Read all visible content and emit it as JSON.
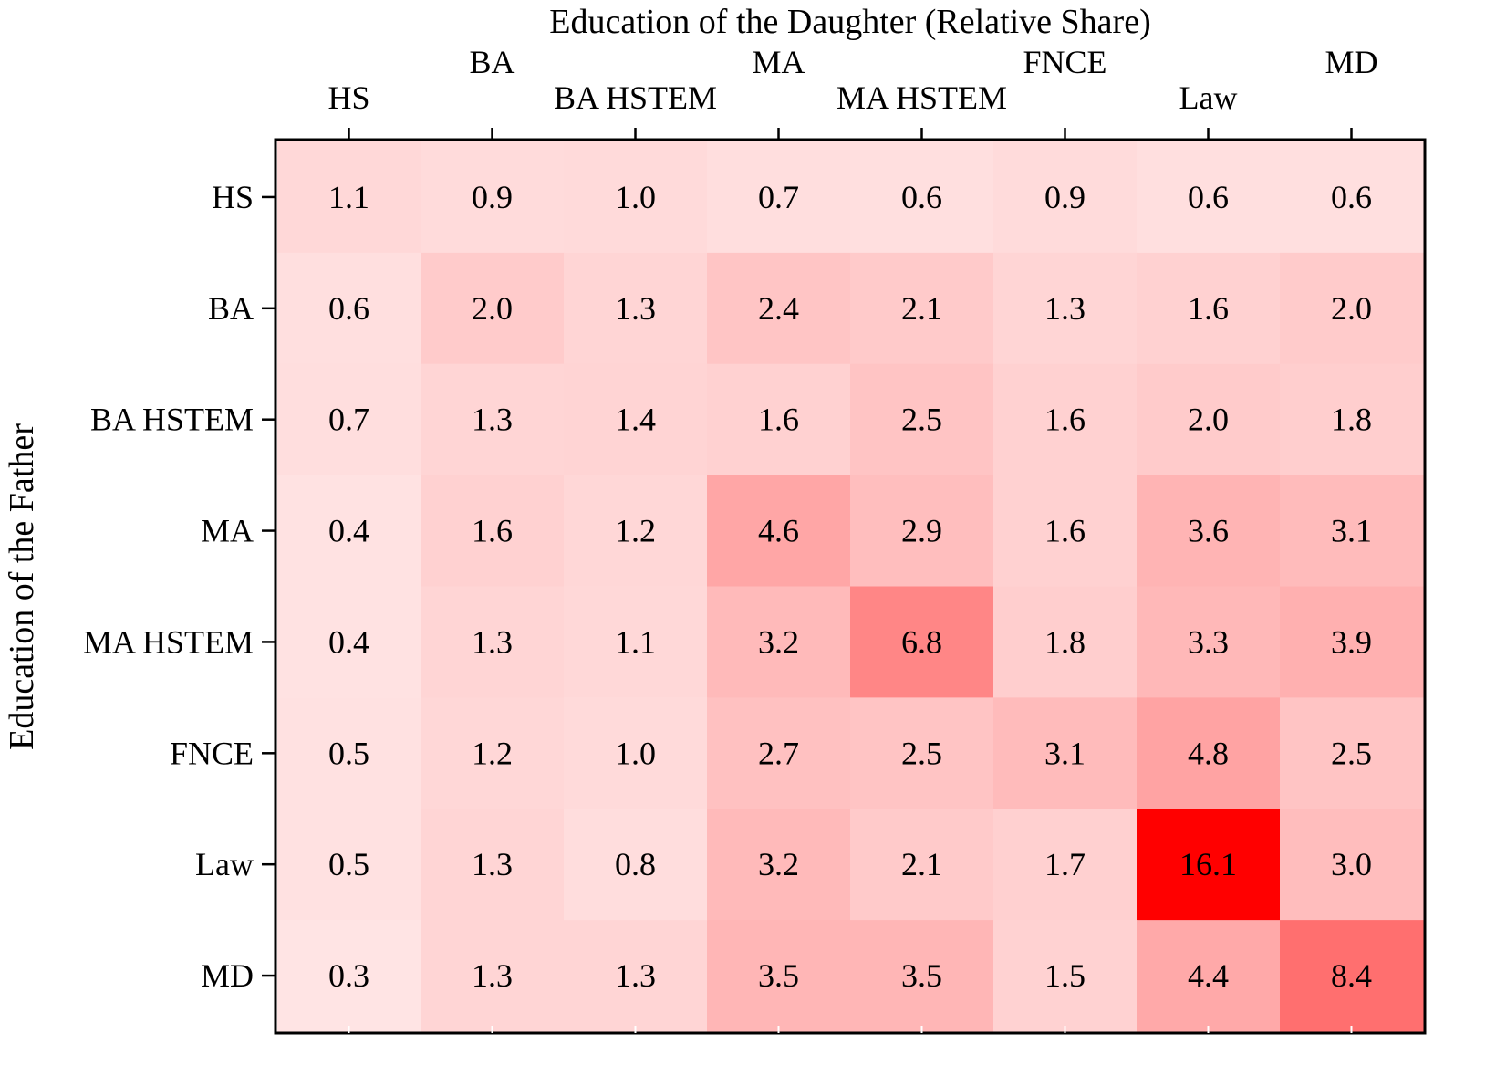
{
  "chart_data": {
    "type": "heatmap",
    "title": "Education of the Daughter (Relative Share)",
    "xlabel": "Education of the Daughter (Relative Share)",
    "ylabel": "Education of the Father",
    "x_categories": [
      "HS",
      "BA",
      "BA HSTEM",
      "MA",
      "MA HSTEM",
      "FNCE",
      "Law",
      "MD"
    ],
    "y_categories": [
      "HS",
      "BA",
      "BA HSTEM",
      "MA",
      "MA HSTEM",
      "FNCE",
      "Law",
      "MD"
    ],
    "x_axis_position": "top",
    "values": [
      [
        1.1,
        0.9,
        1.0,
        0.7,
        0.6,
        0.9,
        0.6,
        0.6
      ],
      [
        0.6,
        2.0,
        1.3,
        2.4,
        2.1,
        1.3,
        1.6,
        2.0
      ],
      [
        0.7,
        1.3,
        1.4,
        1.6,
        2.5,
        1.6,
        2.0,
        1.8
      ],
      [
        0.4,
        1.6,
        1.2,
        4.6,
        2.9,
        1.6,
        3.6,
        3.1
      ],
      [
        0.4,
        1.3,
        1.1,
        3.2,
        6.8,
        1.8,
        3.3,
        3.9
      ],
      [
        0.5,
        1.2,
        1.0,
        2.7,
        2.5,
        3.1,
        4.8,
        2.5
      ],
      [
        0.5,
        1.3,
        0.8,
        3.2,
        2.1,
        1.7,
        16.1,
        3.0
      ],
      [
        0.3,
        1.3,
        1.3,
        3.5,
        3.5,
        1.5,
        4.4,
        8.4
      ]
    ],
    "colormap": {
      "low": "#ffffff",
      "high": "#ff0000"
    },
    "grid": false,
    "legend": "none"
  }
}
